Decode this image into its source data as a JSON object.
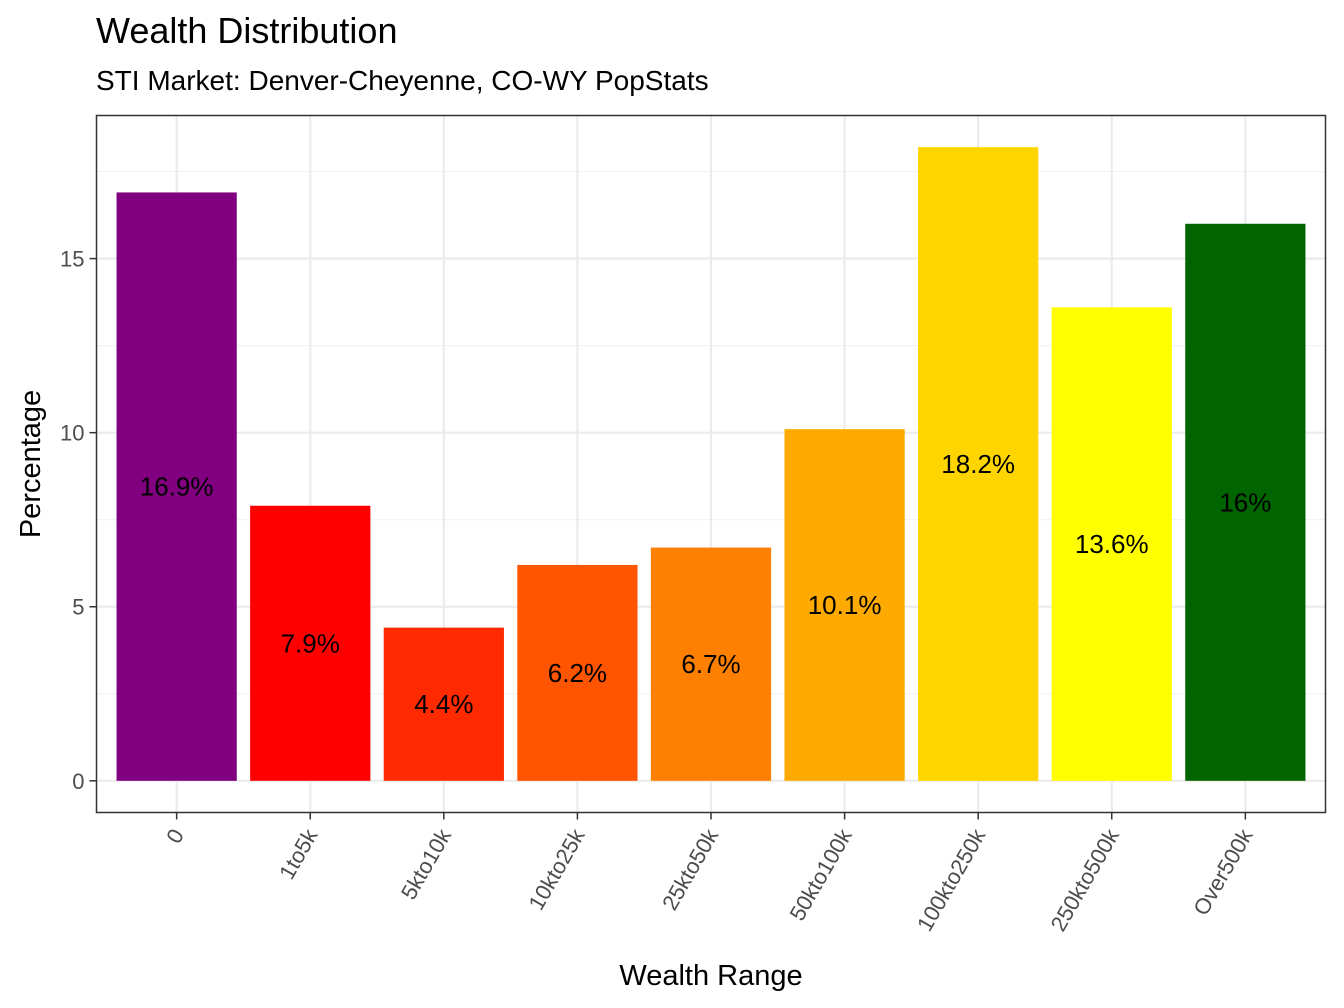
{
  "title": "Wealth Distribution",
  "subtitle": "STI Market: Denver-Cheyenne, CO-WY PopStats",
  "chart_data": {
    "type": "bar",
    "categories": [
      "0",
      "1to5k",
      "5kto10k",
      "10kto25k",
      "25kto50k",
      "50kto100k",
      "100kto250k",
      "250kto500k",
      "Over500k"
    ],
    "values": [
      16.9,
      7.9,
      4.4,
      6.2,
      6.7,
      10.1,
      18.2,
      13.6,
      16
    ],
    "labels": [
      "16.9%",
      "7.9%",
      "4.4%",
      "6.2%",
      "6.7%",
      "10.1%",
      "18.2%",
      "13.6%",
      "16%"
    ],
    "colors": [
      "#800080",
      "#FF0000",
      "#FF2A00",
      "#FF5500",
      "#FF8000",
      "#FFAA00",
      "#FFD500",
      "#FFFF00",
      "#006400"
    ],
    "xlabel": "Wealth Range",
    "ylabel": "Percentage",
    "yticks": [
      0,
      5,
      10,
      15
    ],
    "ylim": [
      -0.91,
      19.11
    ],
    "grid": true,
    "legend": "none",
    "theme": "bw"
  }
}
